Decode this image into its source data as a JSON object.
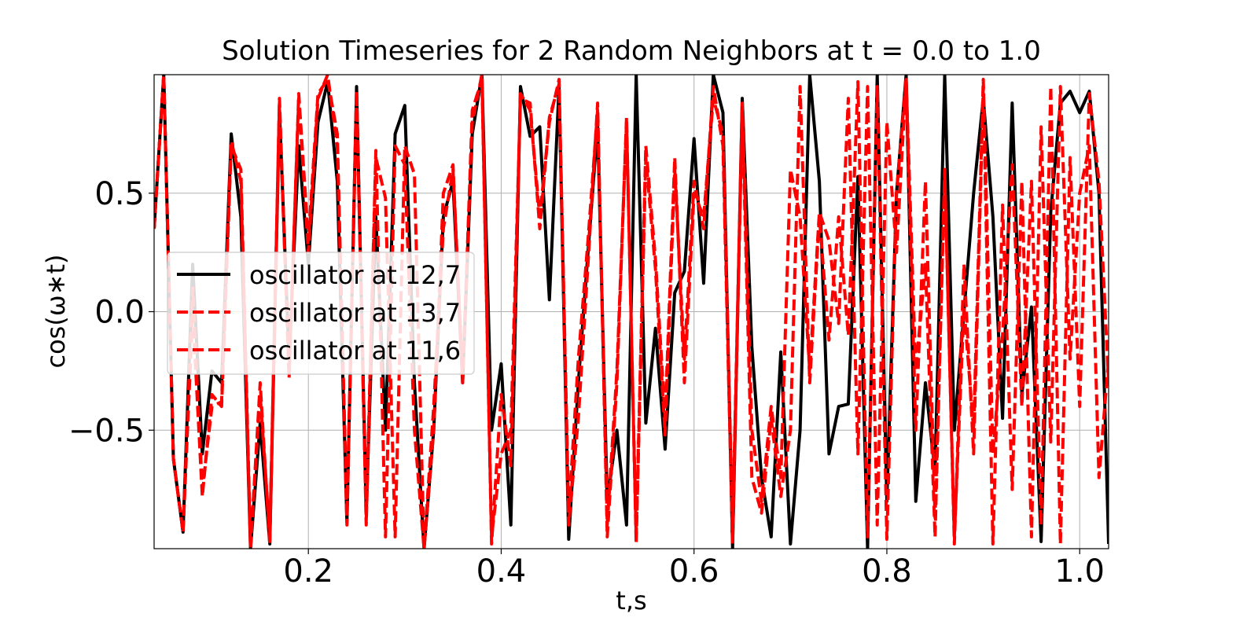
{
  "chart_data": {
    "type": "line",
    "title": "Solution Timeseries for 2 Random Neighbors at t = 0.0 to 1.0",
    "xlabel": "t,s",
    "ylabel": "cos(ω∗t)",
    "x": [
      0.04,
      0.05,
      0.06,
      0.07,
      0.08,
      0.09,
      0.1,
      0.11,
      0.12,
      0.13,
      0.14,
      0.15,
      0.16,
      0.17,
      0.18,
      0.19,
      0.2,
      0.21,
      0.22,
      0.23,
      0.24,
      0.25,
      0.26,
      0.27,
      0.28,
      0.29,
      0.3,
      0.31,
      0.32,
      0.33,
      0.34,
      0.35,
      0.36,
      0.37,
      0.38,
      0.39,
      0.4,
      0.41,
      0.42,
      0.43,
      0.44,
      0.45,
      0.46,
      0.47,
      0.48,
      0.49,
      0.5,
      0.51,
      0.52,
      0.53,
      0.54,
      0.55,
      0.56,
      0.57,
      0.58,
      0.59,
      0.6,
      0.61,
      0.62,
      0.63,
      0.64,
      0.65,
      0.66,
      0.67,
      0.68,
      0.69,
      0.7,
      0.71,
      0.72,
      0.73,
      0.74,
      0.75,
      0.76,
      0.77,
      0.78,
      0.79,
      0.8,
      0.81,
      0.82,
      0.83,
      0.84,
      0.85,
      0.86,
      0.87,
      0.88,
      0.89,
      0.9,
      0.91,
      0.92,
      0.93,
      0.94,
      0.95,
      0.96,
      0.97,
      0.98,
      0.99,
      1.0,
      1.01,
      1.02,
      1.03
    ],
    "series": [
      {
        "name": "oscillator at 12,7",
        "color": "#000000",
        "dashed": false,
        "values": [
          0.35,
          1.0,
          -0.62,
          -0.93,
          0.2,
          -0.6,
          -0.25,
          -0.3,
          0.75,
          0.4,
          -1.0,
          -0.47,
          -0.98,
          0.85,
          -0.2,
          0.7,
          0.2,
          0.8,
          0.97,
          0.55,
          -0.89,
          0.95,
          -0.85,
          0.4,
          -0.5,
          0.75,
          0.87,
          -0.3,
          -1.0,
          -0.5,
          0.4,
          0.55,
          -0.3,
          0.75,
          1.0,
          -0.5,
          -0.22,
          -0.9,
          0.95,
          0.74,
          0.78,
          0.05,
          0.95,
          -0.96,
          -0.3,
          0.25,
          0.78,
          -0.8,
          -0.5,
          -0.9,
          1.0,
          -0.47,
          -0.07,
          -0.58,
          0.08,
          0.17,
          0.73,
          0.12,
          1.0,
          0.84,
          -1.0,
          0.9,
          -0.15,
          -0.7,
          -0.95,
          -0.17,
          -0.98,
          -0.5,
          1.0,
          0.55,
          -0.6,
          -0.4,
          -0.39,
          0.57,
          -1.0,
          1.0,
          -0.8,
          0.5,
          1.0,
          -0.8,
          -0.3,
          -0.68,
          1.0,
          -0.5,
          0.0,
          0.5,
          0.9,
          0.4,
          -0.45,
          0.88,
          -0.35,
          0.02,
          -0.97,
          0.42,
          0.88,
          0.93,
          0.84,
          0.93,
          0.5,
          -0.98
        ]
      },
      {
        "name": "oscillator at 13,7",
        "color": "#ff0000",
        "dashed": true,
        "values": [
          0.35,
          1.0,
          -0.62,
          -0.93,
          0.1,
          -0.75,
          -0.4,
          -0.38,
          0.72,
          0.55,
          -1.0,
          -0.3,
          -0.98,
          0.9,
          -0.27,
          0.9,
          0.25,
          0.9,
          1.0,
          0.7,
          -0.86,
          0.93,
          -0.88,
          0.68,
          -0.95,
          0.7,
          0.62,
          -0.5,
          -1.0,
          -0.4,
          0.35,
          0.6,
          -0.28,
          0.8,
          1.0,
          -0.98,
          -0.35,
          -0.65,
          0.92,
          0.85,
          0.4,
          0.8,
          0.98,
          -0.9,
          -0.45,
          0.2,
          0.88,
          -0.95,
          -0.3,
          0.82,
          -0.98,
          0.65,
          0.18,
          -0.52,
          0.6,
          -0.2,
          0.55,
          0.35,
          0.95,
          0.7,
          -0.98,
          0.85,
          -0.7,
          -0.85,
          -0.45,
          -0.78,
          -0.5,
          0.95,
          -0.3,
          0.4,
          -0.12,
          0.4,
          -0.1,
          0.97,
          -0.95,
          0.95,
          -0.96,
          0.5,
          0.98,
          -0.5,
          0.55,
          -0.87,
          0.58,
          -0.95,
          0.02,
          -0.5,
          0.98,
          -0.6,
          -0.1,
          0.62,
          -0.4,
          0.55,
          -0.9,
          0.95,
          -0.98,
          0.65,
          -0.4,
          0.92,
          0.55,
          -0.3
        ]
      },
      {
        "name": "oscillator at 11,6",
        "color": "#ff0000",
        "dashed": true,
        "values": [
          0.35,
          1.0,
          -0.62,
          -0.93,
          0.0,
          -0.78,
          -0.35,
          -0.4,
          0.7,
          0.6,
          -0.98,
          -0.35,
          -0.95,
          0.88,
          -0.28,
          0.92,
          0.3,
          0.92,
          0.98,
          0.75,
          -0.9,
          0.93,
          -0.9,
          0.65,
          0.48,
          -0.95,
          0.7,
          0.58,
          -1.0,
          -0.5,
          0.5,
          0.62,
          -0.3,
          0.85,
          0.98,
          -0.95,
          -0.6,
          -0.5,
          0.9,
          0.88,
          0.35,
          0.82,
          0.96,
          -0.85,
          -0.2,
          0.3,
          0.85,
          -0.9,
          -0.25,
          0.8,
          -0.95,
          0.7,
          0.22,
          -0.45,
          0.65,
          -0.3,
          0.5,
          0.4,
          0.9,
          0.75,
          -0.92,
          0.88,
          -0.5,
          -0.8,
          -0.4,
          -0.7,
          0.6,
          0.4,
          -0.25,
          0.42,
          0.3,
          -0.05,
          0.9,
          -0.6,
          0.95,
          -0.9,
          0.8,
          0.25,
          0.98,
          -0.25,
          0.2,
          -0.95,
          0.6,
          -0.98,
          0.2,
          -0.6,
          0.95,
          -0.98,
          0.45,
          -0.75,
          0.55,
          -0.95,
          0.78,
          -0.55,
          0.95,
          -0.2,
          0.5,
          0.7,
          -0.7,
          -0.2
        ]
      }
    ],
    "xlim": [
      0.04,
      1.03
    ],
    "ylim": [
      -1,
      1
    ],
    "xticks": [
      0.2,
      0.4,
      0.6,
      0.8,
      {
        "value": 1,
        "label": "1.0"
      }
    ],
    "yticks": [
      {
        "value": -0.5,
        "label": "−0.5"
      },
      {
        "value": 0,
        "label": "0.0"
      },
      0.5
    ],
    "grid": true,
    "legend": "center left"
  }
}
